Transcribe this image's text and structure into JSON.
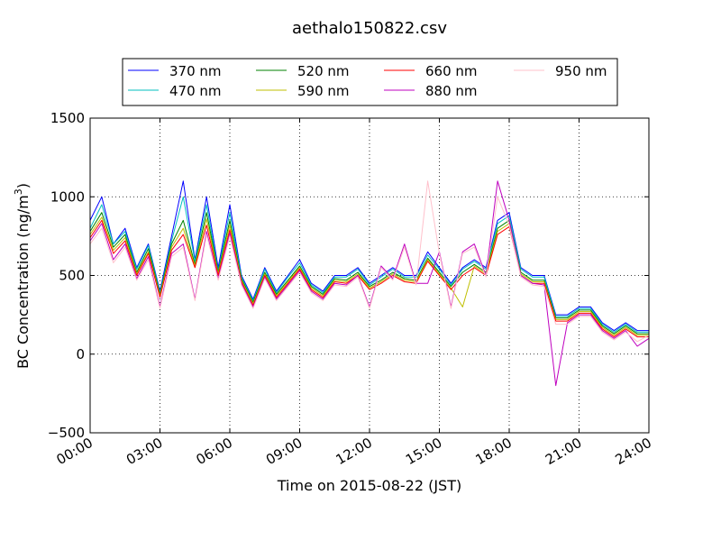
{
  "chart_data": {
    "type": "line",
    "title": "aethalo150822.csv",
    "xlabel": "Time on 2015-08-22 (JST)",
    "ylabel": "BC Concentration (ng/m³)",
    "ylabel_parts": [
      "BC Concentration (ng/m",
      "3",
      ")"
    ],
    "xlim": [
      0,
      24
    ],
    "ylim": [
      -500,
      1500
    ],
    "xticks": [
      0,
      3,
      6,
      9,
      12,
      15,
      18,
      21,
      24
    ],
    "xtick_labels": [
      "00:00",
      "03:00",
      "06:00",
      "09:00",
      "12:00",
      "15:00",
      "18:00",
      "21:00",
      "24:00"
    ],
    "yticks": [
      -500,
      0,
      500,
      1000,
      1500
    ],
    "ytick_labels": [
      "−500",
      "0",
      "500",
      "1000",
      "1500"
    ],
    "grid": true,
    "legend_position": "top-outside",
    "x": [
      0.0,
      0.5,
      1.0,
      1.5,
      2.0,
      2.5,
      3.0,
      3.5,
      4.0,
      4.5,
      5.0,
      5.5,
      6.0,
      6.5,
      7.0,
      7.5,
      8.0,
      8.5,
      9.0,
      9.5,
      10.0,
      10.5,
      11.0,
      11.5,
      12.0,
      12.5,
      13.0,
      13.5,
      14.0,
      14.5,
      15.0,
      15.5,
      16.0,
      16.5,
      17.0,
      17.5,
      18.0,
      18.5,
      19.0,
      19.5,
      20.0,
      20.5,
      21.0,
      21.5,
      22.0,
      22.5,
      23.0,
      23.5,
      24.0
    ],
    "series": [
      {
        "name": "370 nm",
        "color": "#0000ff",
        "values": [
          850,
          1000,
          700,
          800,
          550,
          700,
          400,
          750,
          1100,
          600,
          1000,
          550,
          950,
          500,
          350,
          550,
          400,
          500,
          600,
          450,
          400,
          500,
          500,
          550,
          450,
          500,
          550,
          500,
          500,
          650,
          550,
          450,
          550,
          600,
          550,
          850,
          900,
          550,
          500,
          500,
          250,
          250,
          300,
          300,
          200,
          150,
          200,
          150,
          150
        ]
      },
      {
        "name": "470 nm",
        "color": "#00bfbf",
        "values": [
          800,
          950,
          700,
          780,
          540,
          690,
          390,
          720,
          1000,
          590,
          950,
          530,
          900,
          490,
          340,
          540,
          390,
          490,
          580,
          440,
          390,
          490,
          490,
          540,
          440,
          490,
          540,
          490,
          490,
          630,
          540,
          440,
          540,
          590,
          540,
          830,
          880,
          540,
          490,
          490,
          240,
          240,
          290,
          290,
          190,
          140,
          190,
          140,
          140
        ]
      },
      {
        "name": "520 nm",
        "color": "#008000",
        "values": [
          780,
          900,
          680,
          760,
          520,
          670,
          380,
          700,
          850,
          570,
          900,
          520,
          850,
          480,
          330,
          520,
          380,
          470,
          560,
          430,
          380,
          480,
          470,
          520,
          430,
          470,
          520,
          480,
          470,
          610,
          520,
          430,
          520,
          570,
          520,
          800,
          850,
          520,
          470,
          470,
          230,
          230,
          280,
          280,
          180,
          130,
          180,
          130,
          130
        ]
      },
      {
        "name": "590 nm",
        "color": "#bfbf00",
        "values": [
          760,
          870,
          660,
          740,
          510,
          650,
          370,
          680,
          800,
          560,
          860,
          510,
          820,
          470,
          320,
          510,
          370,
          460,
          550,
          420,
          370,
          470,
          460,
          510,
          420,
          460,
          510,
          470,
          460,
          600,
          510,
          420,
          300,
          560,
          510,
          780,
          830,
          510,
          460,
          460,
          220,
          220,
          270,
          270,
          170,
          120,
          170,
          120,
          120
        ]
      },
      {
        "name": "660 nm",
        "color": "#ff0000",
        "values": [
          740,
          850,
          640,
          720,
          500,
          640,
          360,
          660,
          760,
          550,
          820,
          500,
          790,
          460,
          310,
          500,
          360,
          450,
          540,
          410,
          360,
          460,
          450,
          500,
          410,
          450,
          500,
          460,
          450,
          590,
          500,
          410,
          500,
          550,
          500,
          760,
          810,
          500,
          450,
          450,
          210,
          210,
          260,
          260,
          160,
          110,
          160,
          110,
          110
        ]
      },
      {
        "name": "880 nm",
        "color": "#bf00bf",
        "values": [
          720,
          830,
          600,
          700,
          480,
          620,
          300,
          640,
          700,
          350,
          780,
          480,
          770,
          450,
          300,
          490,
          350,
          440,
          530,
          400,
          350,
          450,
          440,
          500,
          300,
          560,
          480,
          700,
          450,
          450,
          650,
          300,
          650,
          700,
          500,
          1100,
          850,
          500,
          450,
          440,
          -200,
          200,
          250,
          250,
          150,
          100,
          150,
          50,
          100
        ]
      },
      {
        "name": "950 nm",
        "color": "#ffc0cb",
        "values": [
          700,
          800,
          580,
          680,
          470,
          600,
          290,
          620,
          680,
          340,
          760,
          470,
          750,
          440,
          290,
          480,
          340,
          430,
          520,
          390,
          340,
          440,
          430,
          490,
          290,
          550,
          470,
          680,
          440,
          1100,
          640,
          290,
          640,
          680,
          490,
          1000,
          820,
          490,
          440,
          430,
          190,
          190,
          240,
          240,
          140,
          90,
          140,
          80,
          120
        ]
      }
    ]
  }
}
